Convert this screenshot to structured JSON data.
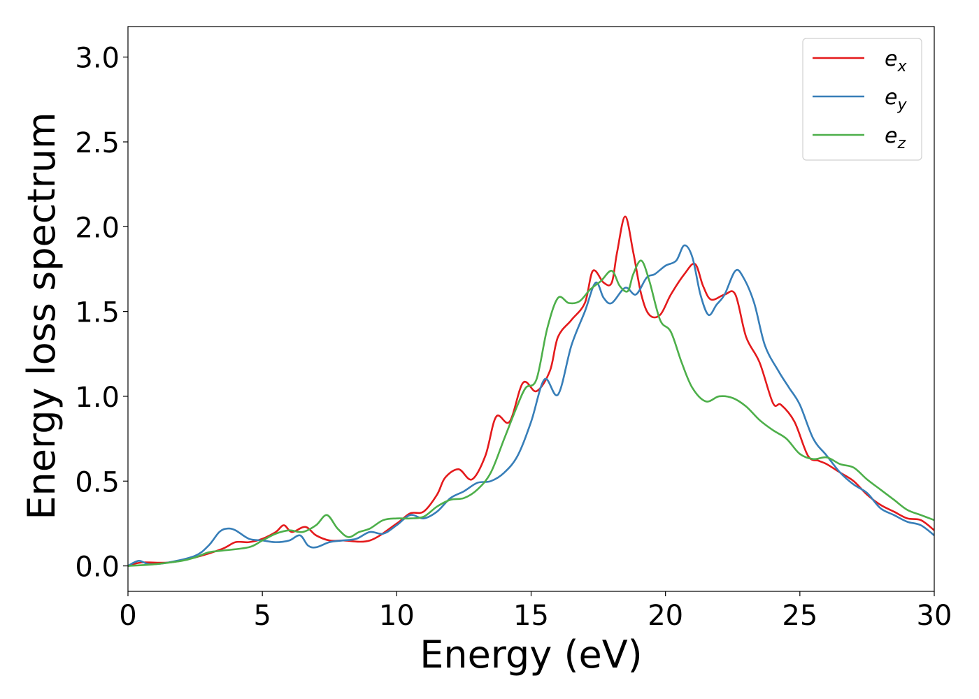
{
  "chart_data": {
    "type": "line",
    "xlabel": "Energy (eV)",
    "ylabel": "Energy loss spectrum",
    "xlim": [
      0,
      30
    ],
    "ylim": [
      -0.15,
      3.18
    ],
    "xticks": [
      0,
      5,
      10,
      15,
      20,
      25,
      30
    ],
    "yticks": [
      0.0,
      0.5,
      1.0,
      1.5,
      2.0,
      2.5,
      3.0
    ],
    "xtick_labels": [
      "0",
      "5",
      "10",
      "15",
      "20",
      "25",
      "30"
    ],
    "ytick_labels": [
      "0.0",
      "0.5",
      "1.0",
      "1.5",
      "2.0",
      "2.5",
      "3.0"
    ],
    "grid": false,
    "legend_position": "top-right",
    "series": [
      {
        "name": "e_x",
        "base": "e",
        "sub": "x",
        "color": "#e41a1c",
        "points": [
          [
            0,
            0
          ],
          [
            0.5,
            0.02
          ],
          [
            1.5,
            0.02
          ],
          [
            2.5,
            0.05
          ],
          [
            3.5,
            0.1
          ],
          [
            4.0,
            0.14
          ],
          [
            4.5,
            0.14
          ],
          [
            5.0,
            0.16
          ],
          [
            5.5,
            0.2
          ],
          [
            5.8,
            0.24
          ],
          [
            6.1,
            0.2
          ],
          [
            6.6,
            0.23
          ],
          [
            7.0,
            0.18
          ],
          [
            7.5,
            0.15
          ],
          [
            8.0,
            0.15
          ],
          [
            9.0,
            0.15
          ],
          [
            10.0,
            0.25
          ],
          [
            10.5,
            0.31
          ],
          [
            11.0,
            0.32
          ],
          [
            11.5,
            0.42
          ],
          [
            11.8,
            0.52
          ],
          [
            12.3,
            0.57
          ],
          [
            12.8,
            0.51
          ],
          [
            13.3,
            0.65
          ],
          [
            13.7,
            0.88
          ],
          [
            14.2,
            0.85
          ],
          [
            14.7,
            1.08
          ],
          [
            15.2,
            1.03
          ],
          [
            15.7,
            1.15
          ],
          [
            16.0,
            1.35
          ],
          [
            16.5,
            1.45
          ],
          [
            17.0,
            1.55
          ],
          [
            17.3,
            1.74
          ],
          [
            17.7,
            1.67
          ],
          [
            18.0,
            1.67
          ],
          [
            18.2,
            1.85
          ],
          [
            18.5,
            2.06
          ],
          [
            18.8,
            1.85
          ],
          [
            19.1,
            1.6
          ],
          [
            19.4,
            1.48
          ],
          [
            19.8,
            1.48
          ],
          [
            20.2,
            1.6
          ],
          [
            20.7,
            1.72
          ],
          [
            21.1,
            1.78
          ],
          [
            21.4,
            1.65
          ],
          [
            21.7,
            1.57
          ],
          [
            22.2,
            1.6
          ],
          [
            22.6,
            1.6
          ],
          [
            23.0,
            1.35
          ],
          [
            23.5,
            1.2
          ],
          [
            24.0,
            0.96
          ],
          [
            24.3,
            0.95
          ],
          [
            24.8,
            0.85
          ],
          [
            25.3,
            0.65
          ],
          [
            25.7,
            0.62
          ],
          [
            26.0,
            0.6
          ],
          [
            26.5,
            0.55
          ],
          [
            27.0,
            0.5
          ],
          [
            27.5,
            0.42
          ],
          [
            28.0,
            0.36
          ],
          [
            28.5,
            0.32
          ],
          [
            29.0,
            0.28
          ],
          [
            29.5,
            0.27
          ],
          [
            30.0,
            0.21
          ]
        ]
      },
      {
        "name": "e_y",
        "base": "e",
        "sub": "y",
        "color": "#377eb8",
        "points": [
          [
            0,
            0
          ],
          [
            0.4,
            0.03
          ],
          [
            0.8,
            0.01
          ],
          [
            1.5,
            0.02
          ],
          [
            2.5,
            0.06
          ],
          [
            3.0,
            0.12
          ],
          [
            3.4,
            0.2
          ],
          [
            3.7,
            0.22
          ],
          [
            4.0,
            0.21
          ],
          [
            4.5,
            0.16
          ],
          [
            5.0,
            0.15
          ],
          [
            5.5,
            0.14
          ],
          [
            6.0,
            0.15
          ],
          [
            6.4,
            0.18
          ],
          [
            6.7,
            0.12
          ],
          [
            7.0,
            0.11
          ],
          [
            7.5,
            0.14
          ],
          [
            8.0,
            0.15
          ],
          [
            8.5,
            0.16
          ],
          [
            9.0,
            0.2
          ],
          [
            9.5,
            0.19
          ],
          [
            10.0,
            0.24
          ],
          [
            10.5,
            0.3
          ],
          [
            11.0,
            0.28
          ],
          [
            11.5,
            0.32
          ],
          [
            12.0,
            0.4
          ],
          [
            12.5,
            0.44
          ],
          [
            13.0,
            0.49
          ],
          [
            13.5,
            0.5
          ],
          [
            14.0,
            0.55
          ],
          [
            14.5,
            0.65
          ],
          [
            15.0,
            0.85
          ],
          [
            15.5,
            1.1
          ],
          [
            16.0,
            1.01
          ],
          [
            16.5,
            1.3
          ],
          [
            17.0,
            1.5
          ],
          [
            17.4,
            1.67
          ],
          [
            17.7,
            1.58
          ],
          [
            18.0,
            1.55
          ],
          [
            18.5,
            1.64
          ],
          [
            18.9,
            1.6
          ],
          [
            19.3,
            1.7
          ],
          [
            19.6,
            1.72
          ],
          [
            20.0,
            1.77
          ],
          [
            20.4,
            1.8
          ],
          [
            20.7,
            1.89
          ],
          [
            21.0,
            1.82
          ],
          [
            21.3,
            1.6
          ],
          [
            21.6,
            1.48
          ],
          [
            21.9,
            1.54
          ],
          [
            22.2,
            1.6
          ],
          [
            22.6,
            1.74
          ],
          [
            22.9,
            1.7
          ],
          [
            23.3,
            1.55
          ],
          [
            23.7,
            1.3
          ],
          [
            24.2,
            1.15
          ],
          [
            24.6,
            1.05
          ],
          [
            25.0,
            0.95
          ],
          [
            25.5,
            0.75
          ],
          [
            26.0,
            0.65
          ],
          [
            26.5,
            0.55
          ],
          [
            27.0,
            0.48
          ],
          [
            27.5,
            0.43
          ],
          [
            28.0,
            0.34
          ],
          [
            28.5,
            0.3
          ],
          [
            29.0,
            0.26
          ],
          [
            29.5,
            0.24
          ],
          [
            30.0,
            0.18
          ]
        ]
      },
      {
        "name": "e_z",
        "base": "e",
        "sub": "z",
        "color": "#4daf4a",
        "points": [
          [
            0,
            0
          ],
          [
            1.0,
            0.01
          ],
          [
            2.0,
            0.03
          ],
          [
            2.5,
            0.05
          ],
          [
            3.0,
            0.08
          ],
          [
            3.5,
            0.09
          ],
          [
            4.5,
            0.11
          ],
          [
            5.0,
            0.15
          ],
          [
            5.5,
            0.19
          ],
          [
            6.0,
            0.21
          ],
          [
            6.5,
            0.2
          ],
          [
            7.0,
            0.24
          ],
          [
            7.4,
            0.3
          ],
          [
            7.8,
            0.22
          ],
          [
            8.2,
            0.17
          ],
          [
            8.6,
            0.2
          ],
          [
            9.0,
            0.22
          ],
          [
            9.5,
            0.27
          ],
          [
            10.0,
            0.28
          ],
          [
            10.5,
            0.28
          ],
          [
            11.0,
            0.29
          ],
          [
            11.5,
            0.35
          ],
          [
            12.0,
            0.39
          ],
          [
            12.5,
            0.4
          ],
          [
            13.0,
            0.45
          ],
          [
            13.5,
            0.55
          ],
          [
            14.0,
            0.75
          ],
          [
            14.5,
            0.95
          ],
          [
            14.8,
            1.05
          ],
          [
            15.2,
            1.1
          ],
          [
            15.6,
            1.4
          ],
          [
            16.0,
            1.58
          ],
          [
            16.4,
            1.55
          ],
          [
            16.8,
            1.56
          ],
          [
            17.2,
            1.63
          ],
          [
            17.6,
            1.68
          ],
          [
            18.0,
            1.74
          ],
          [
            18.3,
            1.65
          ],
          [
            18.6,
            1.62
          ],
          [
            18.8,
            1.72
          ],
          [
            19.1,
            1.8
          ],
          [
            19.4,
            1.68
          ],
          [
            19.8,
            1.45
          ],
          [
            20.2,
            1.38
          ],
          [
            20.6,
            1.2
          ],
          [
            21.0,
            1.05
          ],
          [
            21.5,
            0.97
          ],
          [
            22.0,
            1.0
          ],
          [
            22.5,
            0.99
          ],
          [
            23.0,
            0.94
          ],
          [
            23.5,
            0.86
          ],
          [
            24.0,
            0.8
          ],
          [
            24.5,
            0.75
          ],
          [
            25.0,
            0.66
          ],
          [
            25.5,
            0.63
          ],
          [
            26.0,
            0.64
          ],
          [
            26.5,
            0.6
          ],
          [
            27.0,
            0.58
          ],
          [
            27.5,
            0.51
          ],
          [
            28.0,
            0.45
          ],
          [
            28.5,
            0.39
          ],
          [
            29.0,
            0.33
          ],
          [
            29.5,
            0.3
          ],
          [
            30.0,
            0.27
          ]
        ]
      }
    ]
  }
}
